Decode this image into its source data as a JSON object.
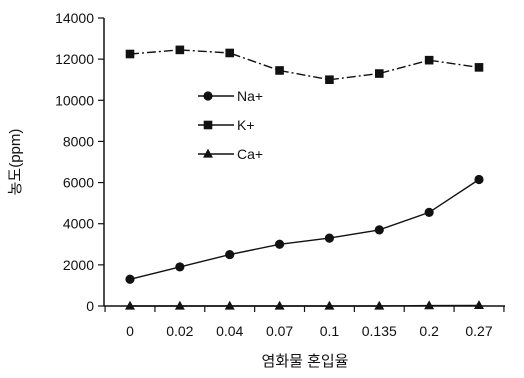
{
  "chart_data": {
    "type": "line",
    "title": "",
    "xlabel": "염화물 혼입율",
    "ylabel": "농도(ppm)",
    "categories": [
      "0",
      "0.02",
      "0.04",
      "0.07",
      "0.1",
      "0.135",
      "0.2",
      "0.27"
    ],
    "ylim": [
      0,
      14000
    ],
    "yticks": [
      "0",
      "2000",
      "4000",
      "6000",
      "8000",
      "10000",
      "12000",
      "14000"
    ],
    "grid": false,
    "legend_position": "center-left",
    "series": [
      {
        "name": "Na+",
        "marker": "circle",
        "line": "solid",
        "values": [
          1300,
          1900,
          2500,
          3000,
          3300,
          3700,
          4550,
          6150
        ]
      },
      {
        "name": "K+",
        "marker": "square",
        "line": "dash-dot",
        "values": [
          12250,
          12450,
          12300,
          11450,
          11000,
          11300,
          11950,
          11600
        ]
      },
      {
        "name": "Ca+",
        "marker": "triangle",
        "line": "solid",
        "values": [
          0,
          0,
          0,
          0,
          0,
          0,
          20,
          30
        ]
      }
    ]
  }
}
